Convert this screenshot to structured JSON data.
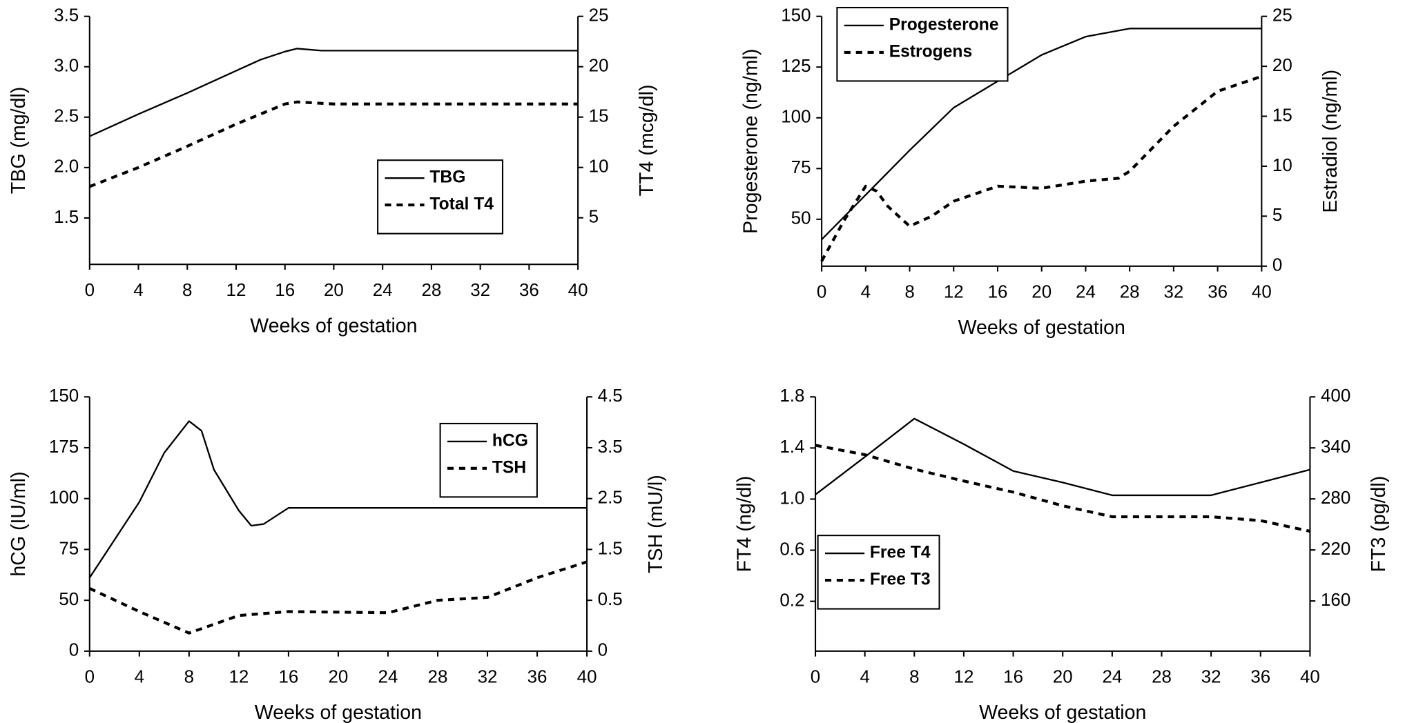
{
  "chart_data": [
    {
      "type": "line",
      "xlabel": "Weeks of gestation",
      "ylabel": "TBG (mg/dl)",
      "y2label": "TT4 (mcg/dl)",
      "xlim": [
        0,
        40
      ],
      "xticks": [
        0,
        4,
        8,
        12,
        16,
        20,
        24,
        28,
        32,
        36,
        40
      ],
      "ylim": [
        1.04,
        3.5
      ],
      "yticks": [
        1.5,
        {
          "value": 2,
          "label": "2.0"
        },
        2.5,
        {
          "value": 3,
          "label": "3.0"
        },
        3.5
      ],
      "y2lim": [
        0.38,
        25
      ],
      "y2ticks": [
        5,
        10,
        15,
        20,
        25
      ],
      "legend": "center right",
      "grid": false,
      "series": [
        {
          "name": "TBG",
          "color": "#000000",
          "linestyle": "solid",
          "x": [
            0,
            4,
            8,
            12,
            14,
            16,
            17,
            18,
            19,
            40
          ],
          "values": [
            2.31,
            2.53,
            2.74,
            2.96,
            3.07,
            3.15,
            3.18,
            3.17,
            3.16,
            3.16
          ]
        },
        {
          "name": "Total T4",
          "color": "#000000",
          "linestyle": "dashed",
          "axis": "y2",
          "x": [
            0,
            4,
            8,
            12,
            16,
            17,
            20,
            40
          ],
          "values": [
            8.1,
            10,
            12.1,
            14.3,
            16.3,
            16.5,
            16.3,
            16.3
          ]
        }
      ]
    },
    {
      "type": "line",
      "xlabel": "Weeks of gestation",
      "ylabel": "Progesterone (ng/ml)",
      "y2label": "Estradiol (ng/ml)",
      "xlim": [
        0,
        40
      ],
      "xticks": [
        0,
        4,
        8,
        12,
        16,
        20,
        24,
        28,
        32,
        36,
        40
      ],
      "ylim": [
        26.9,
        150
      ],
      "yticks": [
        50,
        75,
        100,
        125,
        150
      ],
      "y2lim": [
        0,
        25
      ],
      "y2ticks": [
        0,
        5,
        10,
        15,
        20,
        25
      ],
      "legend": "upper left",
      "grid": false,
      "series": [
        {
          "name": "Progesterone",
          "color": "#000000",
          "linestyle": "solid",
          "x": [
            0,
            4,
            8,
            12,
            16,
            20,
            24,
            28,
            40
          ],
          "values": [
            40,
            62,
            84,
            105,
            118,
            131,
            140,
            144,
            144
          ]
        },
        {
          "name": "Estrogens",
          "color": "#000000",
          "linestyle": "dashed",
          "axis": "y2",
          "x": [
            0,
            2,
            4,
            5,
            6,
            8,
            10,
            12,
            16,
            20,
            24,
            27,
            28,
            32,
            36,
            40
          ],
          "values": [
            0.5,
            4.5,
            8,
            7.5,
            6,
            4,
            5,
            6.5,
            8,
            7.8,
            8.5,
            8.8,
            9.5,
            14,
            17.5,
            19
          ]
        }
      ]
    },
    {
      "type": "line",
      "xlabel": "Weeks of gestation",
      "ylabel": "hCG (IU/ml)",
      "y2label": "TSH (mU/l)",
      "xlim": [
        0,
        40
      ],
      "xticks": [
        0,
        4,
        8,
        12,
        16,
        20,
        24,
        28,
        32,
        36,
        40
      ],
      "ylim": [
        0,
        150
      ],
      "yticks": [
        0,
        {
          "value": 30,
          "label": "50"
        },
        {
          "value": 60,
          "label": "75"
        },
        {
          "value": 90,
          "label": "100"
        },
        {
          "value": 120,
          "label": "175"
        },
        150
      ],
      "y2lim": [
        0,
        4.5
      ],
      "y2ticks": [
        0,
        {
          "value": 0.9,
          "label": "0.5"
        },
        {
          "value": 1.8,
          "label": "1.5"
        },
        {
          "value": 2.7,
          "label": "2.5"
        },
        {
          "value": 3.6,
          "label": "3.5"
        },
        4.5
      ],
      "legend": "upper right",
      "grid": false,
      "series": [
        {
          "name": "hCG",
          "color": "#000000",
          "linestyle": "solid",
          "x": [
            0,
            4,
            6,
            8,
            9,
            10,
            12,
            13,
            14,
            16,
            40
          ],
          "values": [
            43.3,
            88,
            117,
            135.7,
            130,
            107,
            83,
            74,
            75,
            84.5,
            84.5
          ]
        },
        {
          "name": "TSH",
          "color": "#000000",
          "linestyle": "dashed",
          "axis": "y2",
          "x": [
            0,
            4,
            8,
            12,
            16,
            24,
            28,
            32,
            36,
            40
          ],
          "values": [
            1.11,
            0.7,
            0.32,
            0.63,
            0.7,
            0.68,
            0.9,
            0.95,
            1.3,
            1.58
          ]
        }
      ]
    },
    {
      "type": "line",
      "xlabel": "Weeks of gestation",
      "ylabel": "FT4 (ng/dl)",
      "y2label": "FT3 (pg/dl)",
      "xlim": [
        0,
        40
      ],
      "xticks": [
        0,
        4,
        8,
        12,
        16,
        20,
        24,
        28,
        32,
        36,
        40
      ],
      "ylim": [
        -0.19,
        1.8
      ],
      "yticks": [
        0.2,
        0.6,
        {
          "value": 1,
          "label": "1.0"
        },
        1.4,
        1.8
      ],
      "y2lim": [
        101,
        400
      ],
      "y2ticks": [
        160,
        220,
        280,
        340,
        400
      ],
      "legend": "lower left",
      "grid": false,
      "series": [
        {
          "name": "Free T4",
          "color": "#000000",
          "linestyle": "solid",
          "x": [
            0,
            4,
            8,
            12,
            16,
            20,
            24,
            32,
            36,
            40
          ],
          "values": [
            1.035,
            1.33,
            1.63,
            1.43,
            1.22,
            1.13,
            1.03,
            1.03,
            1.13,
            1.23
          ]
        },
        {
          "name": "Free T3",
          "color": "#000000",
          "linestyle": "dashed",
          "axis": "y2",
          "x": [
            0,
            4,
            8,
            12,
            16,
            20,
            24,
            32,
            36,
            40
          ],
          "values": [
            343,
            332,
            315,
            301,
            288,
            272,
            259,
            259,
            254.5,
            242
          ]
        }
      ]
    }
  ]
}
